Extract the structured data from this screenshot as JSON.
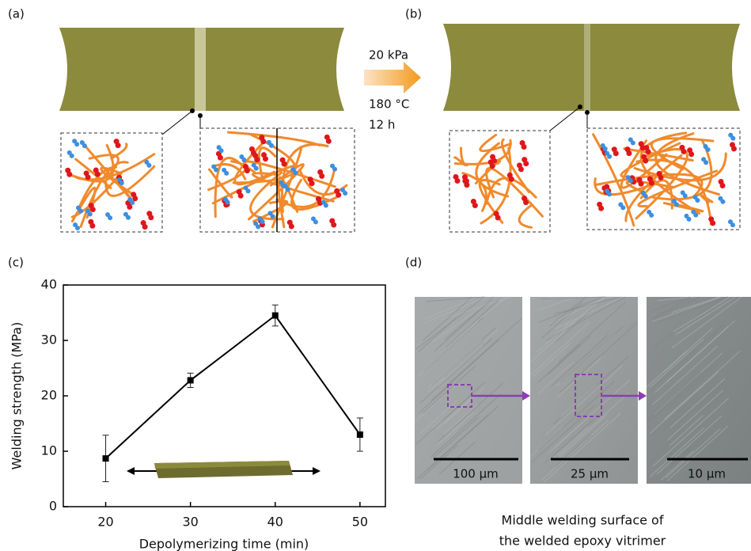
{
  "panel_labels": [
    "(a)",
    "(b)",
    "(c)",
    "(d)"
  ],
  "conditions": [
    "20 kPa",
    "180 °C",
    "12 h"
  ],
  "scale_bars": [
    "100 µm",
    "25 µm",
    "10 µm"
  ],
  "caption": [
    "Middle welding surface of",
    "the welded epoxy vitrimer"
  ],
  "chart_data": {
    "type": "line",
    "x_label": "Depolymerizing time (min)",
    "y_label": "Welding strength (MPa)",
    "x": [
      20,
      30,
      40,
      50
    ],
    "values": [
      8.7,
      22.8,
      34.5,
      13
    ],
    "errors": [
      4.2,
      1.3,
      1.9,
      3.0
    ],
    "color": "#000000",
    "xlim": [
      15,
      53
    ],
    "ylim": [
      0,
      40
    ],
    "xticks": [
      20,
      30,
      40,
      50
    ],
    "yticks": [
      0,
      10,
      20,
      30,
      40
    ]
  }
}
